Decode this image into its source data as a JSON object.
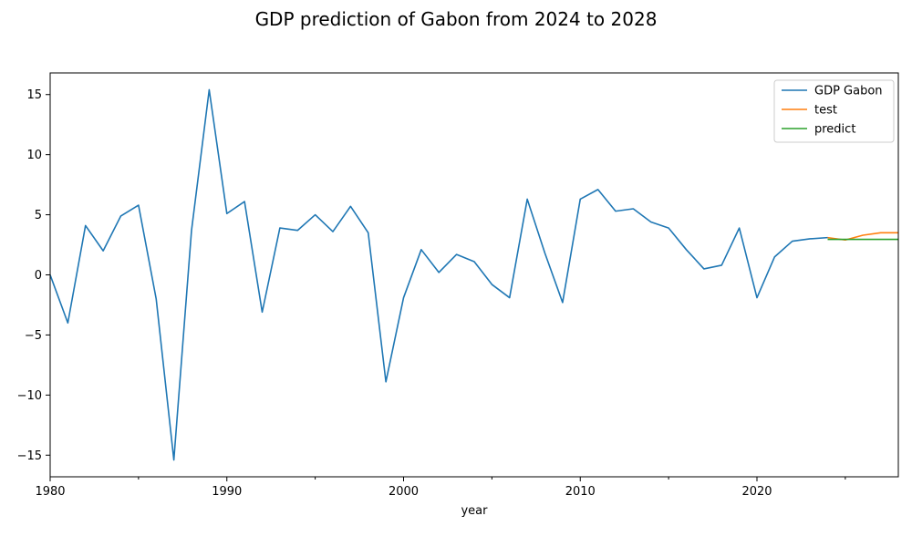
{
  "chart_data": {
    "type": "line",
    "title": "GDP prediction of Gabon from 2024 to 2028",
    "xlabel": "year",
    "ylabel": "",
    "xlim": [
      1980,
      2028
    ],
    "ylim": [
      -16.8,
      16.8
    ],
    "xticks": [
      1980,
      1990,
      2000,
      2010,
      2020
    ],
    "minor_xticks": [
      1985,
      1995,
      2005,
      2015,
      2025
    ],
    "yticks": [
      -15,
      -10,
      -5,
      0,
      5,
      10,
      15
    ],
    "grid": false,
    "legend_position": "top-right",
    "series": [
      {
        "name": "GDP Gabon",
        "color": "#1f77b4",
        "x": [
          1980,
          1981,
          1982,
          1983,
          1984,
          1985,
          1986,
          1987,
          1988,
          1989,
          1990,
          1991,
          1992,
          1993,
          1994,
          1995,
          1996,
          1997,
          1998,
          1999,
          2000,
          2001,
          2002,
          2003,
          2004,
          2005,
          2006,
          2007,
          2008,
          2009,
          2010,
          2011,
          2012,
          2013,
          2014,
          2015,
          2016,
          2017,
          2018,
          2019,
          2020,
          2021,
          2022,
          2023,
          2024
        ],
        "y": [
          0.0,
          -4.0,
          4.1,
          2.0,
          4.9,
          5.8,
          -2.0,
          -15.4,
          3.7,
          15.4,
          5.1,
          6.1,
          -3.1,
          3.9,
          3.7,
          5.0,
          3.6,
          5.7,
          3.5,
          -8.9,
          -1.9,
          2.1,
          0.2,
          1.7,
          1.1,
          -0.8,
          -1.9,
          6.3,
          1.8,
          -2.3,
          6.3,
          7.1,
          5.3,
          5.5,
          4.4,
          3.9,
          2.1,
          0.5,
          0.8,
          3.9,
          -1.9,
          1.5,
          2.8,
          3.0,
          3.1
        ]
      },
      {
        "name": "test",
        "color": "#ff7f0e",
        "x": [
          2024,
          2025,
          2026,
          2027,
          2028
        ],
        "y": [
          3.1,
          2.9,
          3.3,
          3.5,
          3.5
        ]
      },
      {
        "name": "predict",
        "color": "#2ca02c",
        "x": [
          2024,
          2025,
          2026,
          2027,
          2028
        ],
        "y": [
          2.95,
          2.95,
          2.95,
          2.95,
          2.95
        ]
      }
    ]
  }
}
